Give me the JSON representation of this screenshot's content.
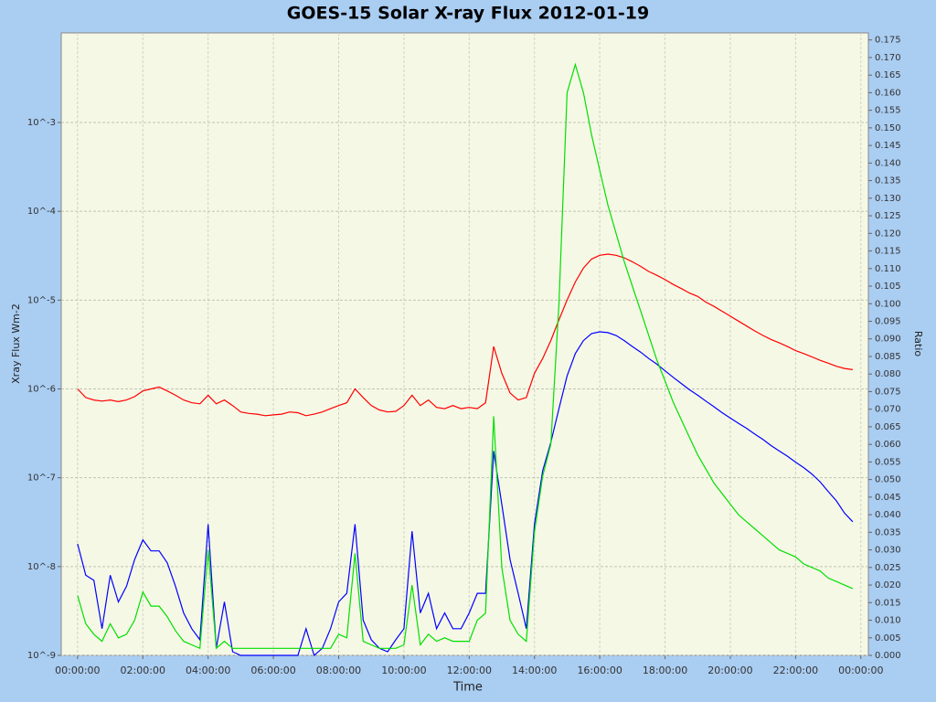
{
  "chart_data": {
    "type": "line",
    "title": "GOES-15 Solar X-ray Flux 2012-01-19",
    "xlabel": "Time",
    "ylabel": "Xray Flux Wm-2",
    "y2label": "Ratio",
    "ylog": true,
    "grid": true,
    "x": [
      0,
      0.25,
      0.5,
      0.75,
      1,
      1.25,
      1.5,
      1.75,
      2,
      2.25,
      2.5,
      2.75,
      3,
      3.25,
      3.5,
      3.75,
      4,
      4.25,
      4.5,
      4.75,
      5,
      5.25,
      5.5,
      5.75,
      6,
      6.25,
      6.5,
      6.75,
      7,
      7.25,
      7.5,
      7.75,
      8,
      8.25,
      8.5,
      8.75,
      9,
      9.25,
      9.5,
      9.75,
      10,
      10.25,
      10.5,
      10.75,
      11,
      11.25,
      11.5,
      11.75,
      12,
      12.25,
      12.5,
      12.75,
      13,
      13.25,
      13.5,
      13.75,
      14,
      14.25,
      14.5,
      14.75,
      15,
      15.25,
      15.5,
      15.75,
      16,
      16.25,
      16.5,
      16.75,
      17,
      17.25,
      17.5,
      17.75,
      18,
      18.25,
      18.5,
      18.75,
      19,
      19.25,
      19.5,
      19.75,
      20,
      20.25,
      20.5,
      20.75,
      21,
      21.25,
      21.5,
      21.75,
      22,
      22.25,
      22.5,
      22.75,
      23,
      23.25,
      23.5,
      23.75
    ],
    "xlim": [
      -0.5,
      24.23
    ],
    "xticks": [
      {
        "value": 0,
        "label": "00:00:00"
      },
      {
        "value": 2,
        "label": "02:00:00"
      },
      {
        "value": 4,
        "label": "04:00:00"
      },
      {
        "value": 6,
        "label": "06:00:00"
      },
      {
        "value": 8,
        "label": "08:00:00"
      },
      {
        "value": 10,
        "label": "10:00:00"
      },
      {
        "value": 12,
        "label": "12:00:00"
      },
      {
        "value": 14,
        "label": "14:00:00"
      },
      {
        "value": 16,
        "label": "16:00:00"
      },
      {
        "value": 18,
        "label": "18:00:00"
      },
      {
        "value": 20,
        "label": "20:00:00"
      },
      {
        "value": 22,
        "label": "22:00:00"
      },
      {
        "value": 24,
        "label": "00:00:00"
      }
    ],
    "ylim": [
      1e-09,
      0.0102
    ],
    "yticks": [
      {
        "value": 1e-09,
        "label": "10^-9"
      },
      {
        "value": 1e-08,
        "label": "10^-8"
      },
      {
        "value": 1e-07,
        "label": "10^-7"
      },
      {
        "value": 1e-06,
        "label": "10^-6"
      },
      {
        "value": 1e-05,
        "label": "10^-5"
      },
      {
        "value": 0.0001,
        "label": "10^-4"
      },
      {
        "value": 0.001,
        "label": "10^-3"
      }
    ],
    "y2lim": [
      0,
      0.177
    ],
    "y2ticks": [
      {
        "value": 0,
        "label": "0.000"
      },
      {
        "value": 0.005,
        "label": "0.005"
      },
      {
        "value": 0.01,
        "label": "0.010"
      },
      {
        "value": 0.015,
        "label": "0.015"
      },
      {
        "value": 0.02,
        "label": "0.020"
      },
      {
        "value": 0.025,
        "label": "0.025"
      },
      {
        "value": 0.03,
        "label": "0.030"
      },
      {
        "value": 0.035,
        "label": "0.035"
      },
      {
        "value": 0.04,
        "label": "0.040"
      },
      {
        "value": 0.045,
        "label": "0.045"
      },
      {
        "value": 0.05,
        "label": "0.050"
      },
      {
        "value": 0.055,
        "label": "0.055"
      },
      {
        "value": 0.06,
        "label": "0.060"
      },
      {
        "value": 0.065,
        "label": "0.065"
      },
      {
        "value": 0.07,
        "label": "0.070"
      },
      {
        "value": 0.075,
        "label": "0.075"
      },
      {
        "value": 0.08,
        "label": "0.080"
      },
      {
        "value": 0.085,
        "label": "0.085"
      },
      {
        "value": 0.09,
        "label": "0.090"
      },
      {
        "value": 0.095,
        "label": "0.095"
      },
      {
        "value": 0.1,
        "label": "0.100"
      },
      {
        "value": 0.105,
        "label": "0.105"
      },
      {
        "value": 0.11,
        "label": "0.110"
      },
      {
        "value": 0.115,
        "label": "0.115"
      },
      {
        "value": 0.12,
        "label": "0.120"
      },
      {
        "value": 0.125,
        "label": "0.125"
      },
      {
        "value": 0.13,
        "label": "0.130"
      },
      {
        "value": 0.135,
        "label": "0.135"
      },
      {
        "value": 0.14,
        "label": "0.140"
      },
      {
        "value": 0.145,
        "label": "0.145"
      },
      {
        "value": 0.15,
        "label": "0.150"
      },
      {
        "value": 0.155,
        "label": "0.155"
      },
      {
        "value": 0.16,
        "label": "0.160"
      },
      {
        "value": 0.165,
        "label": "0.165"
      },
      {
        "value": 0.17,
        "label": "0.170"
      },
      {
        "value": 0.175,
        "label": "0.175"
      }
    ],
    "series": [
      {
        "color": "#ff0000",
        "values": [
          1e-06,
          8e-07,
          7.5e-07,
          7.3e-07,
          7.5e-07,
          7.2e-07,
          7.5e-07,
          8.2e-07,
          9.5e-07,
          1e-06,
          1.05e-06,
          9.5e-07,
          8.5e-07,
          7.5e-07,
          7e-07,
          6.8e-07,
          8.5e-07,
          6.8e-07,
          7.5e-07,
          6.5e-07,
          5.5e-07,
          5.3e-07,
          5.2e-07,
          5e-07,
          5.1e-07,
          5.2e-07,
          5.5e-07,
          5.4e-07,
          5e-07,
          5.2e-07,
          5.5e-07,
          6e-07,
          6.5e-07,
          7e-07,
          1e-06,
          8e-07,
          6.5e-07,
          5.8e-07,
          5.5e-07,
          5.6e-07,
          6.5e-07,
          8.5e-07,
          6.5e-07,
          7.5e-07,
          6.2e-07,
          6e-07,
          6.5e-07,
          6e-07,
          6.2e-07,
          6e-07,
          7e-07,
          3e-06,
          1.5e-06,
          9e-07,
          7.5e-07,
          8e-07,
          1.5e-06,
          2.2e-06,
          3.5e-06,
          6e-06,
          1e-05,
          1.6e-05,
          2.3e-05,
          2.9e-05,
          3.2e-05,
          3.3e-05,
          3.2e-05,
          3e-05,
          2.7e-05,
          2.4e-05,
          2.1e-05,
          1.9e-05,
          1.7e-05,
          1.5e-05,
          1.35e-05,
          1.2e-05,
          1.1e-05,
          9.5e-06,
          8.5e-06,
          7.5e-06,
          6.6e-06,
          5.8e-06,
          5.1e-06,
          4.5e-06,
          4e-06,
          3.6e-06,
          3.3e-06,
          3e-06,
          2.7e-06,
          2.5e-06,
          2.3e-06,
          2.1e-06,
          1.95e-06,
          1.8e-06,
          1.7e-06,
          1.65e-06
        ]
      },
      {
        "color": "#0000ff",
        "values": [
          1.8e-08,
          8e-09,
          7e-09,
          2e-09,
          8e-09,
          4e-09,
          6e-09,
          1.2e-08,
          2e-08,
          1.5e-08,
          1.5e-08,
          1.1e-08,
          6e-09,
          3e-09,
          2e-09,
          1.5e-09,
          3e-08,
          1.2e-09,
          4e-09,
          1.1e-09,
          1e-09,
          1e-09,
          1e-09,
          1e-09,
          1e-09,
          1e-09,
          1e-09,
          1e-09,
          2e-09,
          1e-09,
          1.2e-09,
          2e-09,
          4e-09,
          5e-09,
          3e-08,
          2.5e-09,
          1.5e-09,
          1.2e-09,
          1.1e-09,
          1.5e-09,
          2e-09,
          2.5e-08,
          3e-09,
          5e-09,
          2e-09,
          3e-09,
          2e-09,
          2e-09,
          3e-09,
          5e-09,
          5e-09,
          2e-07,
          5e-08,
          1.2e-08,
          5e-09,
          2e-09,
          3e-08,
          1.2e-07,
          2.5e-07,
          6e-07,
          1.4e-06,
          2.5e-06,
          3.5e-06,
          4.2e-06,
          4.4e-06,
          4.3e-06,
          4e-06,
          3.5e-06,
          3e-06,
          2.6e-06,
          2.2e-06,
          1.9e-06,
          1.6e-06,
          1.35e-06,
          1.15e-06,
          9.8e-07,
          8.5e-07,
          7.3e-07,
          6.3e-07,
          5.4e-07,
          4.7e-07,
          4.1e-07,
          3.6e-07,
          3.1e-07,
          2.7e-07,
          2.3e-07,
          2e-07,
          1.75e-07,
          1.5e-07,
          1.3e-07,
          1.1e-07,
          9e-08,
          7e-08,
          5.5e-08,
          4e-08,
          3.2e-08
        ]
      },
      {
        "color": "#00e000",
        "axis": "y2",
        "values": [
          0.017,
          0.009,
          0.006,
          0.004,
          0.009,
          0.005,
          0.006,
          0.01,
          0.018,
          0.014,
          0.014,
          0.011,
          0.007,
          0.004,
          0.003,
          0.002,
          0.03,
          0.002,
          0.004,
          0.002,
          0.002,
          0.002,
          0.002,
          0.002,
          0.002,
          0.002,
          0.002,
          0.002,
          0.002,
          0.002,
          0.002,
          0.002,
          0.006,
          0.005,
          0.029,
          0.004,
          0.003,
          0.002,
          0.002,
          0.002,
          0.003,
          0.02,
          0.003,
          0.006,
          0.004,
          0.005,
          0.004,
          0.004,
          0.004,
          0.01,
          0.012,
          0.068,
          0.025,
          0.01,
          0.006,
          0.004,
          0.035,
          0.051,
          0.06,
          0.1,
          0.16,
          0.168,
          0.16,
          0.148,
          0.138,
          0.128,
          0.12,
          0.112,
          0.105,
          0.098,
          0.091,
          0.084,
          0.078,
          0.072,
          0.067,
          0.062,
          0.057,
          0.053,
          0.049,
          0.046,
          0.043,
          0.04,
          0.038,
          0.036,
          0.034,
          0.032,
          0.03,
          0.029,
          0.028,
          0.026,
          0.025,
          0.024,
          0.022,
          0.021,
          0.02,
          0.019
        ]
      }
    ]
  }
}
